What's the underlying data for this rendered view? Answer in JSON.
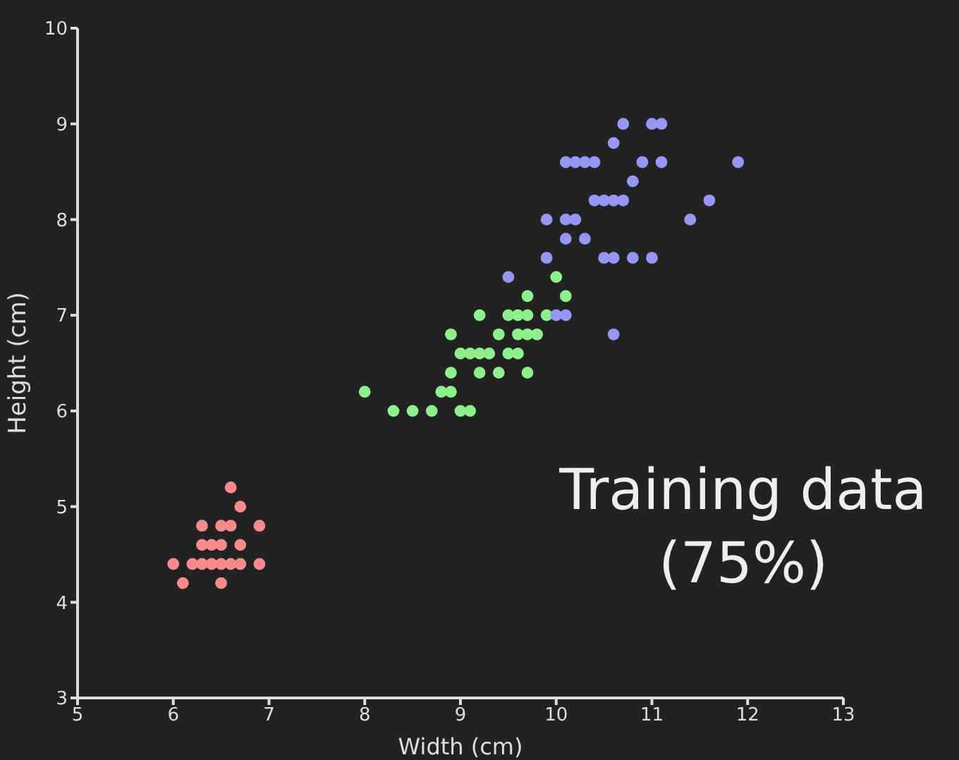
{
  "chart_data": {
    "type": "scatter",
    "xlabel": "Width (cm)",
    "ylabel": "Height (cm)",
    "annotations": [
      "Training data (75%)"
    ],
    "xlim": [
      5,
      13
    ],
    "ylim": [
      3,
      10
    ],
    "xticks": [
      5,
      6,
      7,
      8,
      9,
      10,
      11,
      12,
      13
    ],
    "yticks": [
      3,
      4,
      5,
      6,
      7,
      8,
      9,
      10
    ],
    "grid": false,
    "marker": "circle",
    "series": [
      {
        "color": "#f78a8a",
        "x": [
          6.6,
          6.7,
          6.3,
          6.5,
          6.6,
          6.9,
          6.3,
          6.4,
          6.5,
          6.7,
          6.0,
          6.2,
          6.3,
          6.4,
          6.5,
          6.6,
          6.7,
          6.9,
          6.1,
          6.5
        ],
        "values": [
          5.2,
          5.0,
          4.8,
          4.8,
          4.8,
          4.8,
          4.6,
          4.6,
          4.6,
          4.6,
          4.4,
          4.4,
          4.4,
          4.4,
          4.4,
          4.4,
          4.4,
          4.4,
          4.2,
          4.2
        ]
      },
      {
        "color": "#8ef08c",
        "x": [
          10.0,
          9.7,
          10.1,
          9.2,
          9.5,
          9.6,
          9.7,
          9.9,
          8.9,
          9.4,
          9.6,
          9.7,
          9.8,
          9.0,
          9.1,
          9.2,
          9.3,
          9.5,
          9.6,
          8.9,
          9.2,
          9.4,
          9.7,
          8.0,
          8.8,
          8.9,
          8.3,
          8.5,
          8.7,
          9.0,
          9.1
        ],
        "values": [
          7.4,
          7.2,
          7.2,
          7.0,
          7.0,
          7.0,
          7.0,
          7.0,
          6.8,
          6.8,
          6.8,
          6.8,
          6.8,
          6.6,
          6.6,
          6.6,
          6.6,
          6.6,
          6.6,
          6.4,
          6.4,
          6.4,
          6.4,
          6.2,
          6.2,
          6.2,
          6.0,
          6.0,
          6.0,
          6.0,
          6.0
        ]
      },
      {
        "color": "#9696f5",
        "x": [
          10.7,
          11.0,
          11.1,
          10.6,
          10.1,
          10.2,
          10.3,
          10.4,
          10.9,
          11.1,
          11.9,
          10.8,
          10.4,
          10.5,
          10.6,
          10.7,
          11.6,
          9.9,
          10.1,
          10.2,
          11.4,
          10.1,
          10.3,
          9.9,
          10.5,
          10.6,
          10.8,
          11.0,
          9.5,
          10.0,
          10.1,
          10.6
        ],
        "values": [
          9.0,
          9.0,
          9.0,
          8.8,
          8.6,
          8.6,
          8.6,
          8.6,
          8.6,
          8.6,
          8.6,
          8.4,
          8.2,
          8.2,
          8.2,
          8.2,
          8.2,
          8.0,
          8.0,
          8.0,
          8.0,
          7.8,
          7.8,
          7.6,
          7.6,
          7.6,
          7.6,
          7.6,
          7.4,
          7.0,
          7.0,
          6.8
        ]
      }
    ]
  }
}
